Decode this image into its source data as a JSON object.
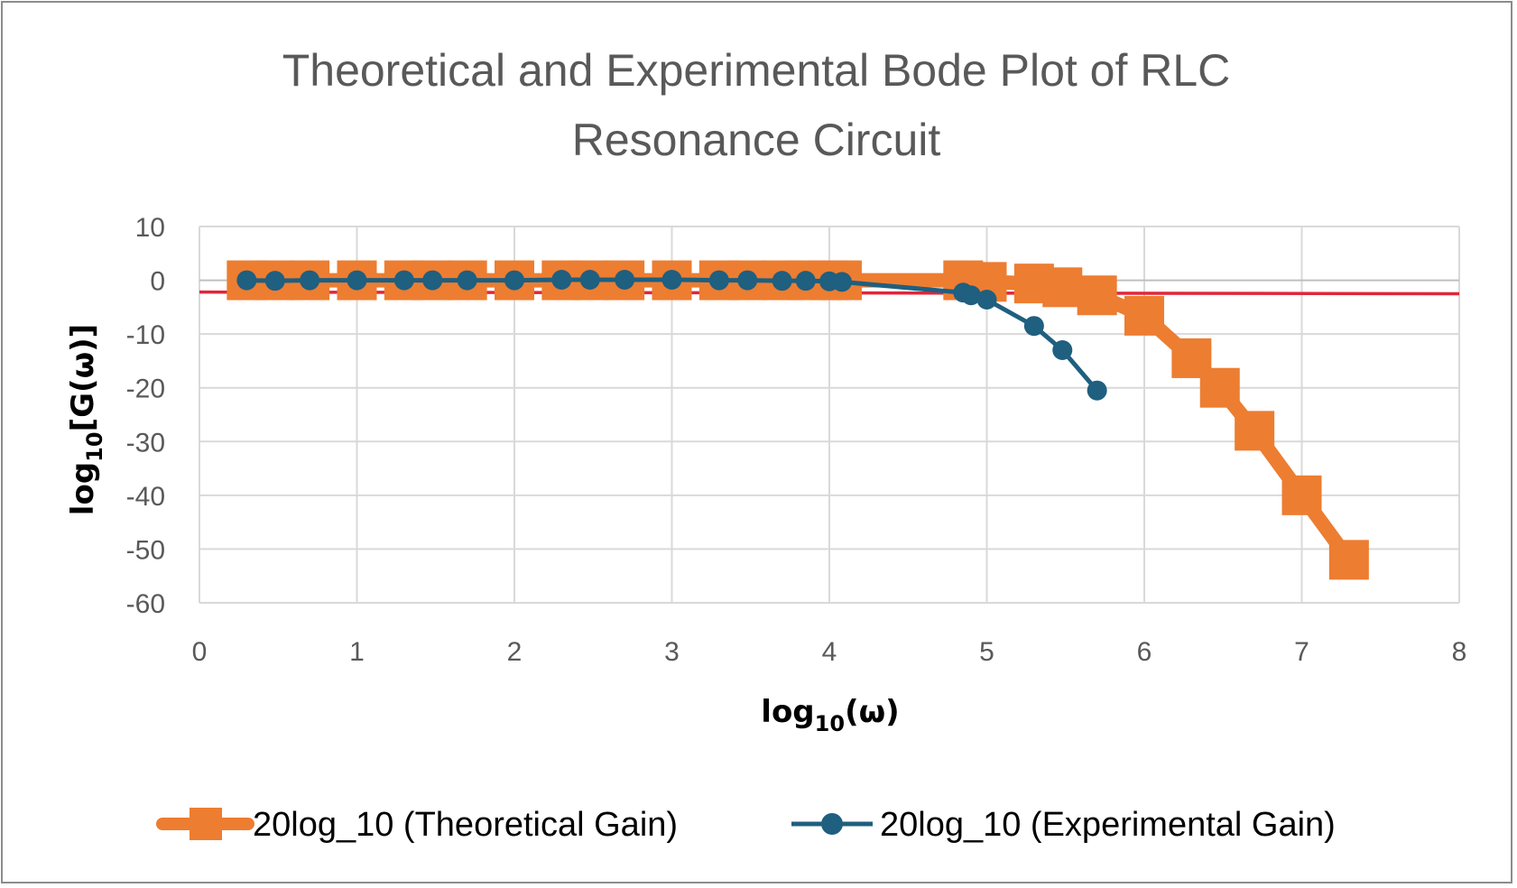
{
  "chart_data": {
    "type": "line",
    "title_line1": "Theoretical and Experimental Bode Plot of RLC",
    "title_line2": "Resonance Circuit",
    "xlabel": {
      "main": "log",
      "sub": "10",
      "tail": "(ω)"
    },
    "ylabel": {
      "main": "log",
      "sub": "10",
      "tail": "[G(ω)]"
    },
    "xlim": [
      0,
      8
    ],
    "ylim": [
      -60,
      10
    ],
    "x_ticks": [
      "0",
      "1",
      "2",
      "3",
      "4",
      "5",
      "6",
      "7",
      "8"
    ],
    "y_ticks": [
      "10",
      "0",
      "-10",
      "-20",
      "-30",
      "-40",
      "-50",
      "-60"
    ],
    "grid": true,
    "legend_position": "bottom",
    "reference_line": {
      "color": "#e0263a",
      "points": [
        [
          0,
          -2.2
        ],
        [
          8,
          -2.5
        ]
      ]
    },
    "series": [
      {
        "name": "20log_10 (Theoretical Gain)",
        "color": "#ed7d31",
        "marker": "square",
        "x": [
          0.3,
          0.48,
          0.7,
          1.0,
          1.3,
          1.48,
          1.7,
          2.0,
          2.3,
          2.48,
          2.7,
          3.0,
          3.3,
          3.48,
          3.7,
          3.85,
          4.0,
          4.08,
          4.85,
          5.0,
          5.3,
          5.48,
          5.7,
          6.0,
          6.3,
          6.48,
          6.7,
          7.0,
          7.3
        ],
        "values": [
          0,
          0,
          0,
          0,
          0,
          0,
          0,
          0,
          0,
          0,
          0,
          0,
          0,
          0,
          0,
          0,
          0,
          0,
          0,
          -0.3,
          -0.6,
          -1.3,
          -2.8,
          -6.6,
          -14.5,
          -20.0,
          -28.0,
          -40.0,
          -52.0
        ]
      },
      {
        "name": "20log_10 (Experimental Gain)",
        "color": "#1f5f7f",
        "marker": "circle",
        "x": [
          0.3,
          0.48,
          0.7,
          1.0,
          1.3,
          1.48,
          1.7,
          2.0,
          2.3,
          2.48,
          2.7,
          3.0,
          3.3,
          3.48,
          3.7,
          3.85,
          4.0,
          4.08,
          4.85,
          4.9,
          5.0,
          5.3,
          5.48,
          5.7
        ],
        "values": [
          0,
          -0.1,
          0,
          0,
          0,
          0,
          0,
          0,
          0.1,
          0.1,
          0.1,
          0.1,
          0,
          0,
          -0.1,
          -0.1,
          -0.2,
          -0.3,
          -2.3,
          -2.8,
          -3.6,
          -8.5,
          -13.0,
          -20.5
        ]
      }
    ]
  }
}
